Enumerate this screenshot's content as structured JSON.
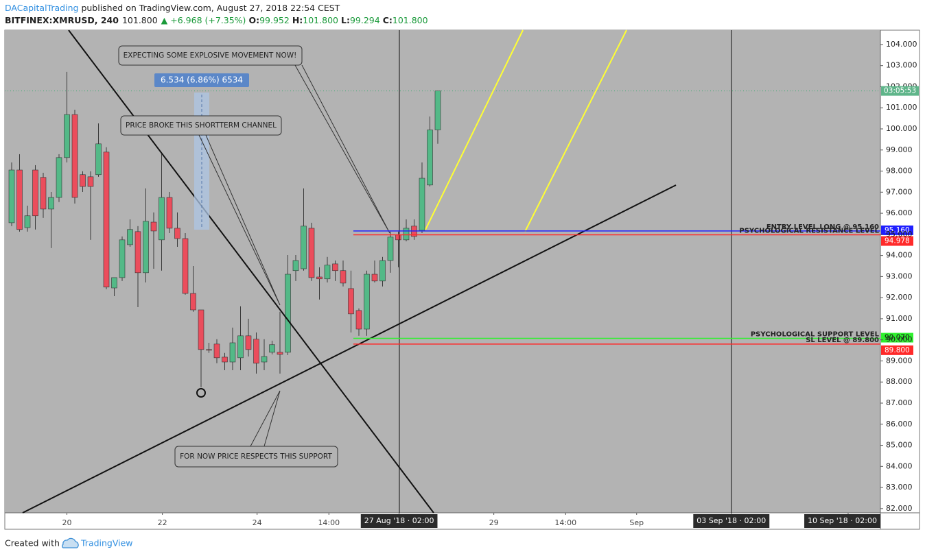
{
  "header": {
    "author": "DACapitalTrading",
    "published": "published on TradingView.com, August 27, 2018 22:54 CEST",
    "symbol": "BITFINEX:XMRUSD, 240",
    "last": "101.800",
    "change": "▲ +6.968 (+7.35%)",
    "o_label": "O:",
    "o_value": "99.952",
    "h_label": "H:",
    "h_value": "101.800",
    "l_label": "L:",
    "l_value": "99.294",
    "c_label": "C:",
    "c_value": "101.800"
  },
  "chart_data": {
    "type": "candlestick",
    "up_color": "#53b987",
    "down_color": "#eb4d5c",
    "open": [
      95.55,
      98.05,
      95.32,
      98.05,
      97.7,
      96.2,
      96.75,
      98.64,
      100.68,
      97.83,
      97.73,
      97.83,
      98.9,
      92.46,
      92.95,
      94.51,
      95.13,
      93.18,
      95.58,
      94.74,
      96.75,
      95.29,
      94.8,
      92.2,
      91.42,
      89.54,
      89.8,
      89.18,
      88.95,
      89.15,
      90.19,
      90.03,
      88.95,
      89.41,
      89.41,
      89.41,
      93.28,
      93.37,
      95.29,
      92.98,
      92.89,
      93.6,
      93.28,
      92.43,
      91.39,
      90.51,
      93.11,
      92.79,
      93.76,
      94.97,
      94.74,
      95.39,
      95.19,
      97.34,
      99.952
    ],
    "high": [
      98.41,
      98.8,
      96.36,
      98.28,
      97.92,
      97.01,
      98.8,
      102.7,
      100.91,
      97.99,
      97.99,
      100.26,
      99.13,
      92.79,
      94.9,
      95.71,
      95.39,
      97.18,
      96.04,
      98.8,
      97.01,
      96.04,
      95.06,
      93.5,
      91.42,
      89.86,
      90.03,
      89.38,
      90.58,
      91.59,
      91.0,
      90.35,
      90.03,
      89.96,
      91.33,
      94.02,
      94.02,
      97.18,
      95.55,
      93.44,
      93.93,
      93.76,
      93.76,
      93.28,
      91.49,
      93.28,
      93.76,
      93.93,
      95.13,
      95.13,
      95.71,
      95.71,
      98.41,
      100.59,
      101.8
    ],
    "low": [
      95.39,
      95.13,
      95.13,
      95.23,
      95.78,
      94.35,
      96.53,
      98.41,
      96.46,
      97.01,
      94.74,
      97.73,
      92.4,
      92.07,
      92.79,
      94.41,
      91.55,
      92.72,
      93.37,
      93.28,
      95.06,
      94.41,
      92.14,
      91.33,
      87.75,
      89.38,
      88.89,
      88.56,
      88.56,
      88.56,
      89.21,
      88.4,
      88.56,
      89.31,
      88.4,
      89.28,
      92.79,
      93.28,
      92.79,
      91.91,
      92.72,
      92.79,
      92.53,
      90.35,
      90.19,
      90.19,
      92.72,
      92.53,
      93.18,
      93.44,
      94.67,
      94.74,
      95.06,
      97.27,
      99.294
    ],
    "close": [
      98.05,
      95.23,
      95.88,
      95.88,
      96.2,
      96.75,
      98.64,
      100.68,
      96.75,
      97.27,
      97.27,
      99.29,
      92.5,
      92.95,
      94.74,
      95.23,
      93.18,
      95.62,
      95.16,
      96.75,
      95.29,
      94.8,
      92.2,
      91.42,
      89.54,
      89.51,
      89.15,
      88.95,
      89.86,
      90.19,
      89.54,
      88.89,
      89.21,
      89.77,
      89.31,
      93.11,
      93.76,
      95.39,
      92.95,
      92.89,
      93.54,
      93.28,
      92.69,
      91.23,
      90.51,
      93.11,
      92.79,
      93.76,
      94.87,
      94.74,
      95.29,
      94.9,
      97.66,
      99.95,
      101.8
    ],
    "xlim": [
      -0.87,
      110.09
    ],
    "xticks": [
      {
        "value": 7,
        "label": "20"
      },
      {
        "value": 19.1,
        "label": "22"
      },
      {
        "value": 31.1,
        "label": "24"
      },
      {
        "value": 40.2,
        "label": "14:00"
      },
      {
        "value": 49.1,
        "label": "27 Aug '18 · 02:00",
        "boxed": true
      },
      {
        "value": 61.1,
        "label": "29"
      },
      {
        "value": 70.2,
        "label": "14:00"
      },
      {
        "value": 79.2,
        "label": "Sep"
      },
      {
        "value": 91.2,
        "label": "03 Sep '18 · 02:00",
        "boxed": true
      },
      {
        "value": 106,
        "label": "10 Sep '18 · 02:00",
        "boxed": true
      }
    ],
    "ylim": [
      81.8,
      104.68
    ],
    "yticks": [
      {
        "value": 82,
        "label": "82.000"
      },
      {
        "value": 83,
        "label": "83.000"
      },
      {
        "value": 84,
        "label": "84.000"
      },
      {
        "value": 85,
        "label": "85.000"
      },
      {
        "value": 86,
        "label": "86.000"
      },
      {
        "value": 87,
        "label": "87.000"
      },
      {
        "value": 88,
        "label": "88.000"
      },
      {
        "value": 89,
        "label": "89.000"
      },
      {
        "value": 90,
        "label": "90.000"
      },
      {
        "value": 91,
        "label": "91.000"
      },
      {
        "value": 92,
        "label": "92.000"
      },
      {
        "value": 93,
        "label": "93.000"
      },
      {
        "value": 94,
        "label": "94.000"
      },
      {
        "value": 95,
        "label": "95.000"
      },
      {
        "value": 96,
        "label": "96.000"
      },
      {
        "value": 97,
        "label": "97.000"
      },
      {
        "value": 98,
        "label": "98.000"
      },
      {
        "value": 99,
        "label": "99.000"
      },
      {
        "value": 100,
        "label": "100.000"
      },
      {
        "value": 101,
        "label": "101.000"
      },
      {
        "value": 102,
        "label": "102.000"
      },
      {
        "value": 103,
        "label": "103.000"
      },
      {
        "value": 104,
        "label": "104.000"
      }
    ],
    "levels": [
      {
        "value": 95.16,
        "label": "95.160",
        "color": "#1f1fff",
        "text": "ENTRY LEVEL LONG @ 95.160"
      },
      {
        "value": 94.978,
        "label": "94.978",
        "color": "#ff2a2a",
        "text": "PSYCHOLOGICAL RESISTANCE LEVEL"
      },
      {
        "value": 90.07,
        "label": "90.070",
        "color": "#2ef02e",
        "text": "PSYCHOLOGICAL SUPPORT LEVEL"
      },
      {
        "value": 89.8,
        "label": "89.800",
        "color": "#ff2a2a",
        "text": "SL LEVEL @ 89.800"
      }
    ],
    "countdown": "03:05:53",
    "annotations": {
      "explosive": "EXPECTING SOME EXPLOSIVE MOVEMENT NOW!",
      "channel": "PRICE BROKE THIS SHORTTERM CHANNEL",
      "support": "FOR NOW PRICE RESPECTS THIS SUPPORT",
      "measure": "6.534 (6.86%) 6534"
    }
  },
  "footer": {
    "created": "Created with",
    "brand": "TradingView"
  }
}
